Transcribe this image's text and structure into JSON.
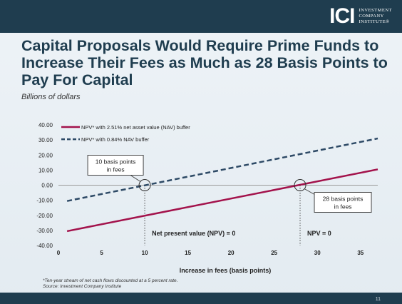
{
  "logo": {
    "mark": "ICI",
    "line1": "INVESTMENT",
    "line2": "COMPANY",
    "line3": "INSTITUTE®"
  },
  "page_number": "11",
  "notes": {
    "line1": "*Ten-year stream of net cash flows discounted at a 5 percent rate.",
    "line2": "Source: Investment Company Institute"
  },
  "colors": {
    "series1": "#a3124b",
    "series2": "#2e4a66",
    "header": "#1f3d4f"
  },
  "chart_data": {
    "type": "line",
    "title": "Capital Proposals Would Require Prime Funds to Increase Their Fees as Much as 28 Basis Points to Pay For Capital",
    "subtitle": "Billions of dollars",
    "xlabel": "Increase in fees (basis points)",
    "ylabel": "",
    "xlim": [
      0,
      37
    ],
    "ylim": [
      -40,
      40
    ],
    "xticks": [
      0,
      5,
      10,
      15,
      20,
      25,
      30,
      35
    ],
    "yticks": [
      40,
      30,
      20,
      10,
      0,
      -10,
      -20,
      -30,
      -40
    ],
    "ytick_labels": [
      "40.00",
      "30.00",
      "20.00",
      "10.00",
      "0.00",
      "-10.00",
      "-20.00",
      "-30.00",
      "-40.00"
    ],
    "legend": "top-left",
    "grid": false,
    "series": [
      {
        "name": "NPV* with 2.51% net asset value (NAV) buffer",
        "style": "solid",
        "x": [
          1,
          37
        ],
        "y": [
          -30.5,
          10.5
        ]
      },
      {
        "name": "NPV* with 0.84% NAV buffer",
        "style": "dashed",
        "x": [
          1,
          37
        ],
        "y": [
          -10.5,
          31
        ]
      }
    ],
    "annotations": [
      {
        "text_line1": "10 basis points",
        "text_line2": "in fees",
        "x": 10,
        "y": 0
      },
      {
        "text_line1": "28 basis points",
        "text_line2": "in fees",
        "x": 28,
        "y": 0
      }
    ],
    "zero_labels": [
      "Net present value (NPV) = 0",
      "NPV = 0"
    ]
  }
}
